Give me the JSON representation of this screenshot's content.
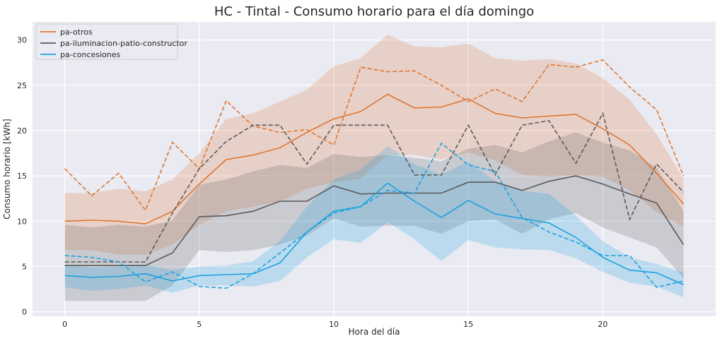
{
  "chart_data": {
    "type": "line",
    "title": "HC - Tintal - Consumo horario para el día domingo",
    "xlabel": "Hora del día",
    "ylabel": "Consumo horario [kWh]",
    "xlim": [
      -1.2,
      24.2
    ],
    "ylim": [
      -0.5,
      32
    ],
    "x_ticks": [
      0,
      5,
      10,
      15,
      20
    ],
    "y_ticks": [
      0,
      5,
      10,
      15,
      20,
      25,
      30
    ],
    "grid": true,
    "legend_position": "top-left",
    "background_color": "#eaeaf2",
    "x": [
      0,
      1,
      2,
      3,
      4,
      5,
      6,
      7,
      8,
      9,
      10,
      11,
      12,
      13,
      14,
      15,
      16,
      17,
      18,
      19,
      20,
      21,
      22,
      23
    ],
    "series": [
      {
        "name": "pa-otros",
        "color": "#dd7733",
        "mean": [
          10.0,
          10.1,
          10.0,
          9.7,
          11.1,
          14.1,
          16.8,
          17.3,
          18.1,
          19.8,
          21.3,
          22.1,
          24.0,
          22.5,
          22.6,
          23.5,
          21.9,
          21.4,
          21.6,
          21.8,
          20.2,
          18.4,
          15.3,
          11.9
        ],
        "dashed": [
          15.8,
          12.8,
          15.3,
          11.2,
          18.7,
          15.8,
          23.3,
          20.5,
          19.8,
          20.1,
          18.4,
          27.0,
          26.5,
          26.6,
          25.0,
          23.2,
          24.6,
          23.2,
          27.3,
          27.0,
          27.8,
          24.8,
          22.3,
          15.0
        ],
        "lower": [
          6.8,
          6.8,
          6.3,
          6.3,
          7.4,
          9.6,
          11.1,
          11.6,
          12.2,
          13.6,
          14.3,
          14.7,
          17.3,
          17.3,
          16.8,
          17.6,
          16.7,
          15.1,
          14.9,
          15.1,
          14.9,
          13.4,
          11.0,
          9.4
        ],
        "upper": [
          13.1,
          13.1,
          13.6,
          13.3,
          14.6,
          17.5,
          21.3,
          21.9,
          23.2,
          24.5,
          27.1,
          28.0,
          30.6,
          29.3,
          29.2,
          29.6,
          28.0,
          27.7,
          27.9,
          27.4,
          25.8,
          23.4,
          19.6,
          14.7
        ]
      },
      {
        "name": "pa-iluminacion-patio-constructor",
        "color": "#5a5a5a",
        "mean": [
          5.1,
          5.1,
          5.1,
          5.1,
          6.5,
          10.5,
          10.6,
          11.1,
          12.2,
          12.2,
          13.9,
          13.0,
          13.1,
          13.1,
          13.1,
          14.3,
          14.3,
          13.4,
          14.4,
          15.0,
          14.1,
          13.0,
          12.0,
          7.4
        ],
        "dashed": [
          5.5,
          5.5,
          5.5,
          5.5,
          10.9,
          15.8,
          18.8,
          20.6,
          20.6,
          16.3,
          20.6,
          20.6,
          20.6,
          15.1,
          15.1,
          20.6,
          15.1,
          20.6,
          21.1,
          16.4,
          21.9,
          10.2,
          16.3,
          13.2
        ],
        "lower": [
          1.2,
          1.2,
          1.2,
          1.2,
          2.9,
          6.8,
          6.6,
          6.8,
          7.4,
          8.4,
          10.3,
          9.4,
          9.5,
          9.5,
          8.6,
          10.0,
          10.2,
          8.6,
          10.2,
          10.9,
          9.3,
          8.2,
          7.1,
          3.7
        ],
        "upper": [
          9.6,
          9.3,
          9.6,
          9.4,
          10.1,
          14.0,
          14.6,
          15.5,
          16.2,
          15.9,
          17.4,
          17.1,
          17.3,
          17.0,
          16.6,
          18.0,
          18.4,
          17.6,
          18.8,
          19.8,
          18.7,
          17.8,
          15.9,
          11.1
        ]
      },
      {
        "name": "pa-concesiones",
        "color": "#1ca2dd",
        "mean": [
          4.0,
          3.8,
          3.9,
          4.2,
          3.4,
          4.0,
          4.1,
          4.2,
          5.4,
          8.8,
          11.1,
          11.6,
          14.2,
          12.2,
          10.4,
          12.3,
          10.8,
          10.3,
          9.8,
          8.2,
          6.0,
          4.6,
          4.3,
          3.0
        ],
        "dashed": [
          6.2,
          6.0,
          5.5,
          3.3,
          4.4,
          2.8,
          2.6,
          4.2,
          6.5,
          8.8,
          10.9,
          11.6,
          13.4,
          13.1,
          18.6,
          16.2,
          15.5,
          10.4,
          8.8,
          7.7,
          6.2,
          6.2,
          2.7,
          3.4
        ],
        "lower": [
          2.7,
          2.3,
          2.5,
          2.9,
          2.1,
          2.9,
          2.9,
          2.8,
          3.4,
          6.0,
          8.0,
          7.6,
          9.9,
          8.0,
          5.6,
          7.9,
          7.1,
          6.9,
          6.8,
          5.9,
          4.4,
          3.2,
          2.8,
          1.6
        ],
        "upper": [
          5.2,
          4.9,
          5.0,
          5.2,
          4.6,
          5.0,
          5.1,
          5.6,
          7.8,
          11.6,
          14.6,
          15.7,
          18.3,
          16.3,
          15.1,
          16.6,
          14.4,
          13.4,
          13.0,
          10.6,
          7.8,
          6.0,
          5.3,
          4.3
        ]
      }
    ]
  }
}
